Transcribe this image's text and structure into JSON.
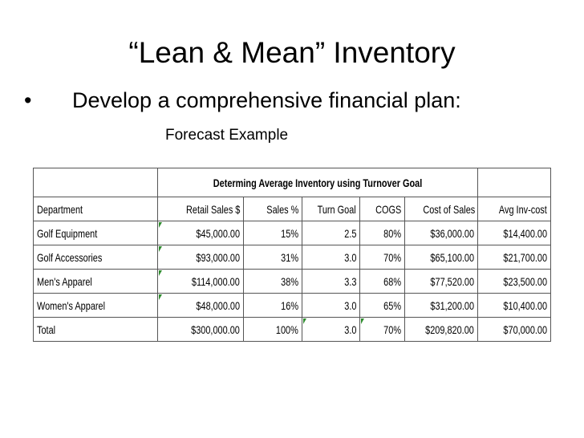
{
  "slide": {
    "title": "“Lean & Mean” Inventory",
    "bullet_symbol": "•",
    "bullet": "Develop a comprehensive financial plan:",
    "subheading": "Forecast Example"
  },
  "table": {
    "caption": "Determing Average Inventory using Turnover Goal",
    "columns": [
      "Department",
      "Retail Sales $",
      "Sales %",
      "Turn Goal",
      "COGS",
      "Cost of Sales",
      "Avg Inv-cost"
    ],
    "rows": [
      [
        "Golf Equipment",
        "$45,000.00",
        "15%",
        "2.5",
        "80%",
        "$36,000.00",
        "$14,400.00"
      ],
      [
        "Golf Accessories",
        "$93,000.00",
        "31%",
        "3.0",
        "70%",
        "$65,100.00",
        "$21,700.00"
      ],
      [
        "Men's Apparel",
        "$114,000.00",
        "38%",
        "3.3",
        "68%",
        "$77,520.00",
        "$23,500.00"
      ],
      [
        "Women's Apparel",
        "$48,000.00",
        "16%",
        "3.0",
        "65%",
        "$31,200.00",
        "$10,400.00"
      ],
      [
        "Total",
        "$300,000.00",
        "100%",
        "3.0",
        "70%",
        "$209,820.00",
        "$70,000.00"
      ]
    ]
  },
  "colors": {
    "cell_border": "#555555",
    "comment_marker": "#2e8b2e"
  }
}
